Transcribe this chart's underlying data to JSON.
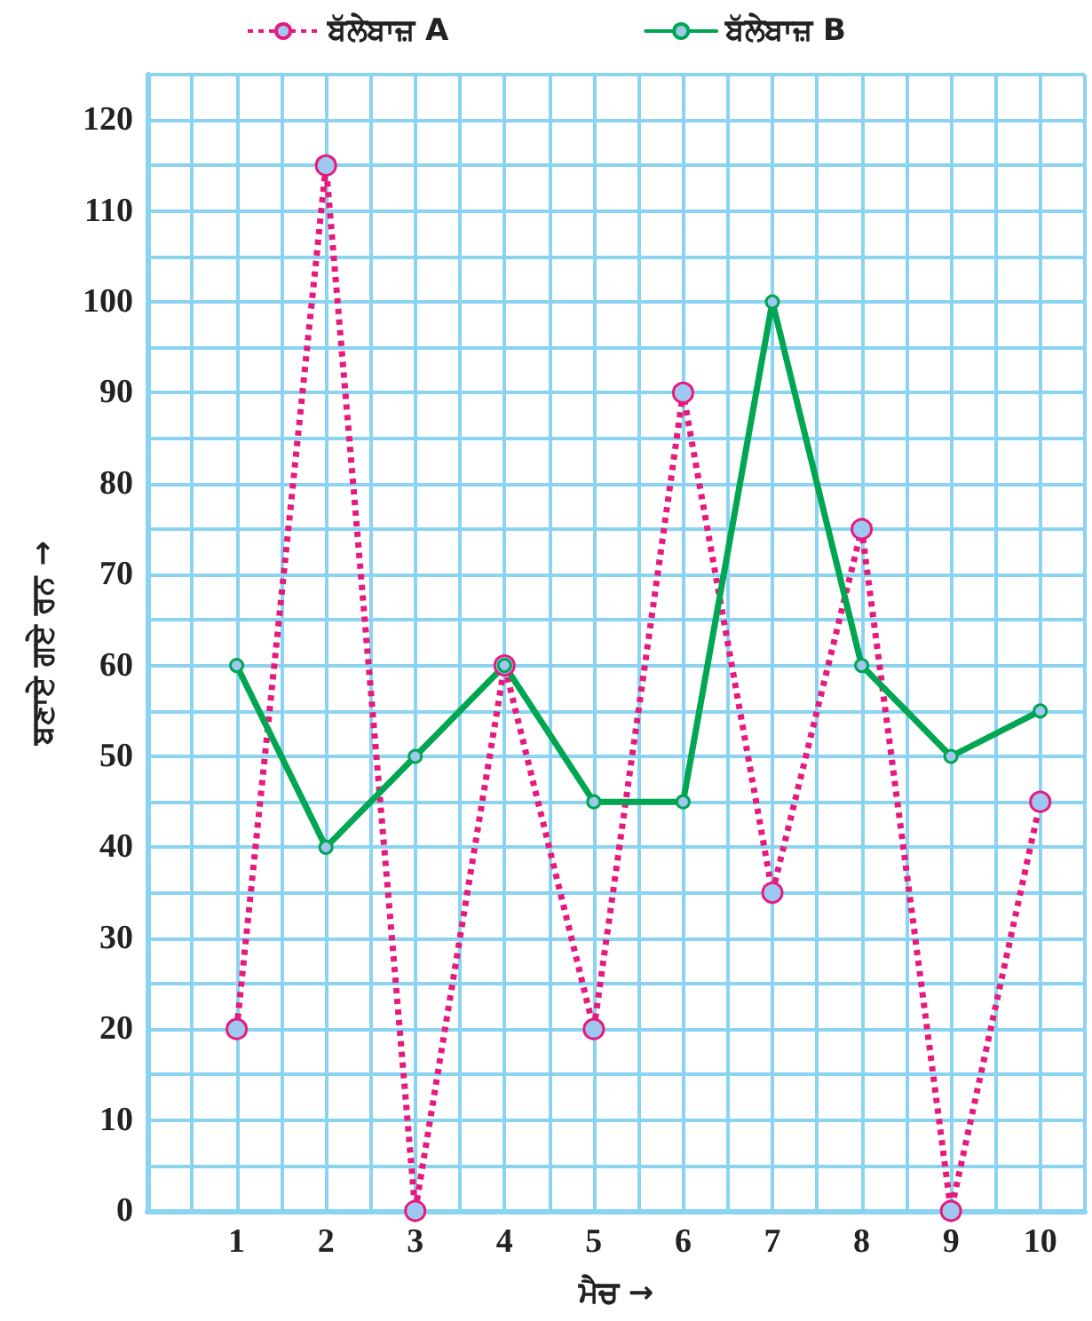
{
  "chart_data": {
    "type": "line",
    "xlabel": "ਮੈਚ →",
    "ylabel": "ਬਣਾਏ ਗਏ ਰਨ →",
    "x": [
      1,
      2,
      3,
      4,
      5,
      6,
      7,
      8,
      9,
      10
    ],
    "series": [
      {
        "name": "ਬੱਲੇਬਾਜ਼ A",
        "color": "#e8197e",
        "line_style": "dotted",
        "values": [
          20,
          115,
          0,
          60,
          20,
          90,
          35,
          75,
          0,
          45
        ]
      },
      {
        "name": "ਬੱਲੇਬਾਜ਼ B",
        "color": "#00a651",
        "line_style": "solid",
        "values": [
          60,
          40,
          50,
          60,
          45,
          45,
          100,
          60,
          50,
          55
        ]
      }
    ],
    "xlim": [
      0,
      10.5
    ],
    "xticks": [
      {
        "value": 0,
        "label": null
      },
      {
        "value": 0.5,
        "label": null
      },
      1,
      {
        "value": 1.5,
        "label": null
      },
      2,
      {
        "value": 2.5,
        "label": null
      },
      3,
      {
        "value": 3.5,
        "label": null
      },
      4,
      {
        "value": 4.5,
        "label": null
      },
      5,
      {
        "value": 5.5,
        "label": null
      },
      6,
      {
        "value": 6.5,
        "label": null
      },
      7,
      {
        "value": 7.5,
        "label": null
      },
      8,
      {
        "value": 8.5,
        "label": null
      },
      9,
      {
        "value": 9.5,
        "label": null
      },
      10,
      {
        "value": 10.5,
        "label": null
      }
    ],
    "ylim": [
      0,
      125
    ],
    "yticks": [
      0,
      {
        "value": 5,
        "label": null
      },
      10,
      {
        "value": 15,
        "label": null
      },
      20,
      {
        "value": 25,
        "label": null
      },
      30,
      {
        "value": 35,
        "label": null
      },
      40,
      {
        "value": 45,
        "label": null
      },
      50,
      {
        "value": 55,
        "label": null
      },
      60,
      {
        "value": 65,
        "label": null
      },
      70,
      {
        "value": 75,
        "label": null
      },
      80,
      {
        "value": 85,
        "label": null
      },
      90,
      {
        "value": 95,
        "label": null
      },
      100,
      {
        "value": 105,
        "label": null
      },
      110,
      {
        "value": 115,
        "label": null
      },
      120,
      {
        "value": 125,
        "label": null
      }
    ],
    "grid": true,
    "legend": "top",
    "marker": "circle"
  }
}
